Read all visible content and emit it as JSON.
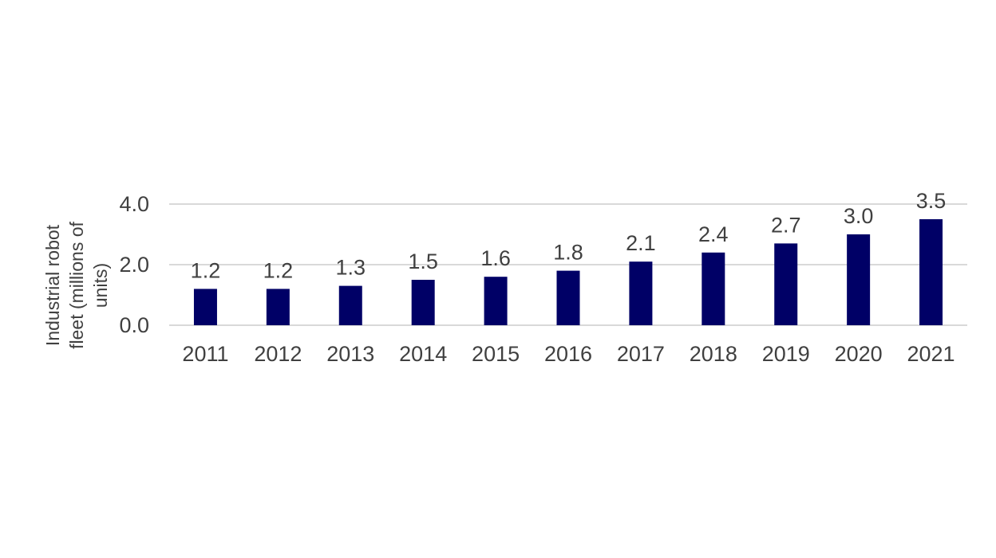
{
  "chart_data": {
    "type": "bar",
    "title": "",
    "xlabel": "",
    "ylabel_lines": [
      "Industrial robot",
      "fleet (millions of",
      "units)"
    ],
    "categories": [
      "2011",
      "2012",
      "2013",
      "2014",
      "2015",
      "2016",
      "2017",
      "2018",
      "2019",
      "2020",
      "2021"
    ],
    "values": [
      1.2,
      1.2,
      1.3,
      1.5,
      1.6,
      1.8,
      2.1,
      2.4,
      2.7,
      3.0,
      3.5
    ],
    "data_labels": [
      "1.2",
      "1.2",
      "1.3",
      "1.5",
      "1.6",
      "1.8",
      "2.1",
      "2.4",
      "2.7",
      "3.0",
      "3.5"
    ],
    "ylim": [
      0,
      4
    ],
    "yticks": [
      "0.0",
      "2.0",
      "4.0"
    ],
    "grid": true,
    "legend": "none",
    "bar_color": "#000066",
    "grid_color": "#d9d9d9"
  }
}
